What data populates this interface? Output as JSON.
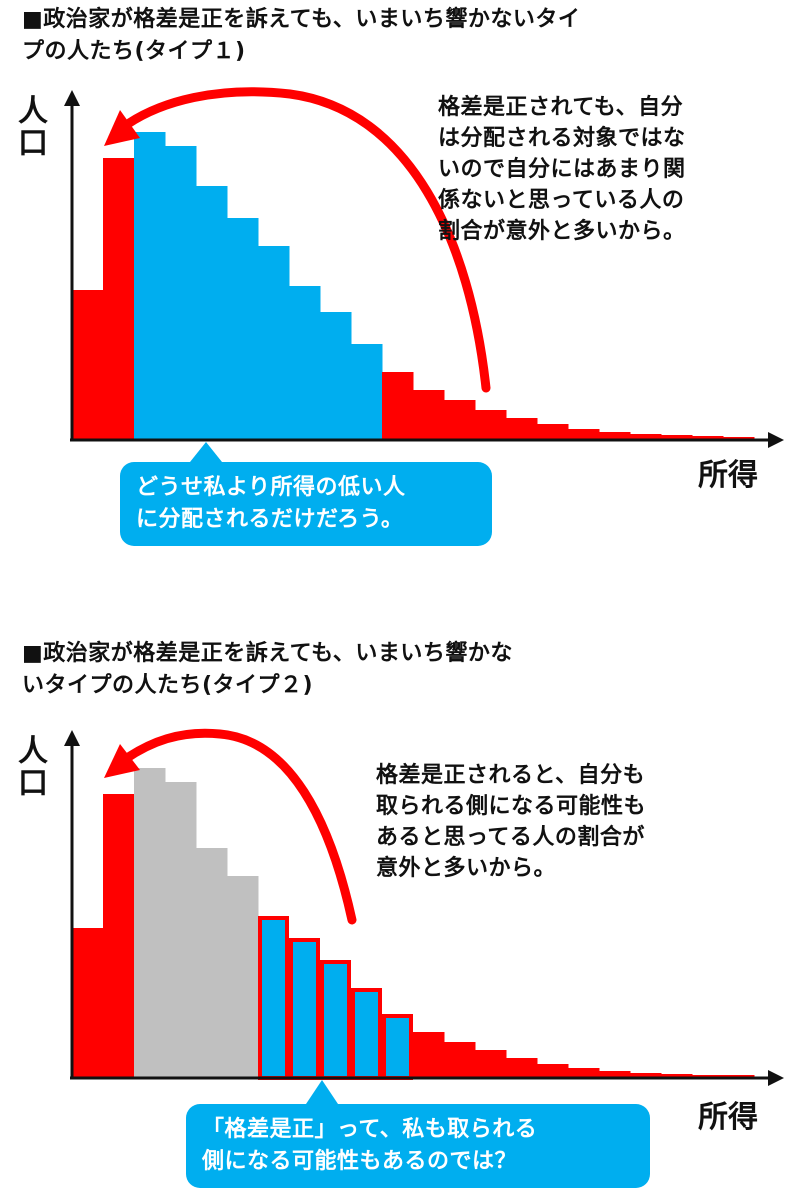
{
  "diagram1": {
    "title": "■政治家が格差是正を訴えても、いまいち響かないタイ\nプの人たち(タイプ１)",
    "note": "格差是正されても、自分\nは分配される対象ではな\nいので自分にはあまり関\n係ないと思っている人の\n割合が意外と多いから。",
    "y_label": "人\n口",
    "x_label": "所得",
    "bubble": "どうせ私より所得の低い人\nに分配されるだけだろう。",
    "colors": {
      "red": "#ff0000",
      "blue": "#00aeef",
      "gray": "#c0c0c0"
    },
    "bars": [
      {
        "value": 150,
        "color": "red"
      },
      {
        "value": 282,
        "color": "red"
      },
      {
        "value": 308,
        "color": "blue"
      },
      {
        "value": 294,
        "color": "blue"
      },
      {
        "value": 254,
        "color": "blue"
      },
      {
        "value": 222,
        "color": "blue"
      },
      {
        "value": 194,
        "color": "blue"
      },
      {
        "value": 154,
        "color": "blue"
      },
      {
        "value": 128,
        "color": "blue"
      },
      {
        "value": 96,
        "color": "blue"
      },
      {
        "value": 68,
        "color": "red"
      },
      {
        "value": 50,
        "color": "red"
      },
      {
        "value": 40,
        "color": "red"
      },
      {
        "value": 30,
        "color": "red"
      },
      {
        "value": 22,
        "color": "red"
      },
      {
        "value": 16,
        "color": "red"
      },
      {
        "value": 11,
        "color": "red"
      },
      {
        "value": 8,
        "color": "red"
      },
      {
        "value": 6,
        "color": "red"
      },
      {
        "value": 5,
        "color": "red"
      },
      {
        "value": 4,
        "color": "red"
      },
      {
        "value": 3,
        "color": "red"
      }
    ]
  },
  "diagram2": {
    "title": "■政治家が格差是正を訴えても、いまいち響かな\nいタイプの人たち(タイプ２)",
    "note": "格差是正されると、自分も\n取られる側になる可能性も\nあると思ってる人の割合が\n意外と多いから。",
    "y_label": "人\n口",
    "x_label": "所得",
    "bubble": "「格差是正」って、私も取られる\n側になる可能性もあるのでは？",
    "colors": {
      "red": "#ff0000",
      "blue": "#00aeef",
      "gray": "#c0c0c0"
    },
    "bars": [
      {
        "value": 150,
        "color": "red"
      },
      {
        "value": 284,
        "color": "red"
      },
      {
        "value": 310,
        "color": "gray"
      },
      {
        "value": 296,
        "color": "gray"
      },
      {
        "value": 230,
        "color": "gray"
      },
      {
        "value": 202,
        "color": "gray"
      },
      {
        "value": 162,
        "color": "blue-outlined"
      },
      {
        "value": 140,
        "color": "blue-outlined"
      },
      {
        "value": 118,
        "color": "blue-outlined"
      },
      {
        "value": 90,
        "color": "blue-outlined"
      },
      {
        "value": 64,
        "color": "blue-outlined"
      },
      {
        "value": 46,
        "color": "red"
      },
      {
        "value": 36,
        "color": "red"
      },
      {
        "value": 28,
        "color": "red"
      },
      {
        "value": 20,
        "color": "red"
      },
      {
        "value": 14,
        "color": "red"
      },
      {
        "value": 10,
        "color": "red"
      },
      {
        "value": 7,
        "color": "red"
      },
      {
        "value": 5,
        "color": "red"
      },
      {
        "value": 4,
        "color": "red"
      },
      {
        "value": 3,
        "color": "red"
      },
      {
        "value": 3,
        "color": "red"
      }
    ]
  }
}
